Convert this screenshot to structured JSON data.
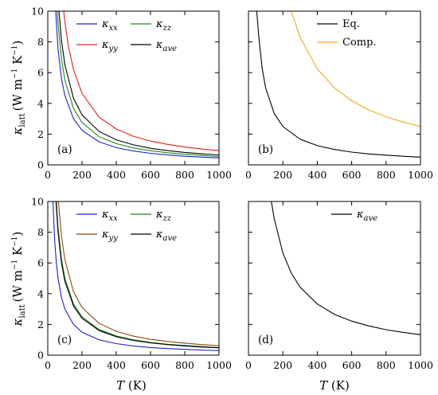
{
  "figure": {
    "ylabel_main": "κ",
    "ylabel_sub": "latt",
    "ylabel_units": "(W m",
    "ylabel_exp1": "−1",
    "ylabel_mid": " K",
    "ylabel_exp2": "−1",
    "ylabel_close": ")",
    "xlabel_main": "T",
    "xlabel_units": " (K)"
  },
  "chart_data": [
    {
      "id": "a",
      "type": "line",
      "panel_label": "(a)",
      "xlim": [
        0,
        1000
      ],
      "ylim": [
        0,
        10
      ],
      "xticks": [
        0,
        200,
        400,
        600,
        800,
        1000
      ],
      "yticks": [
        0,
        2,
        4,
        6,
        8,
        10
      ],
      "show_xticklabels": true,
      "show_yticklabels": true,
      "legend_position": "top-right, two columns",
      "series": [
        {
          "name": "κ",
          "sub": "xx",
          "color": "#2020d0",
          "x": [
            46,
            60,
            80,
            100,
            150,
            200,
            300,
            400,
            500,
            600,
            700,
            800,
            900,
            1000
          ],
          "y": [
            10,
            7.5,
            5.6,
            4.5,
            3.0,
            2.25,
            1.5,
            1.12,
            0.9,
            0.75,
            0.64,
            0.56,
            0.5,
            0.45
          ]
        },
        {
          "name": "κ",
          "sub": "yy",
          "color": "#e02020",
          "x": [
            93,
            100,
            120,
            150,
            200,
            300,
            400,
            500,
            600,
            700,
            800,
            900,
            1000
          ],
          "y": [
            10,
            9.3,
            7.75,
            6.2,
            4.65,
            3.1,
            2.33,
            1.86,
            1.55,
            1.33,
            1.16,
            1.03,
            0.93
          ]
        },
        {
          "name": "κ",
          "sub": "zz",
          "color": "#1a8a1a",
          "x": [
            55,
            60,
            80,
            100,
            150,
            200,
            300,
            400,
            500,
            600,
            700,
            800,
            900,
            1000
          ],
          "y": [
            10,
            9.2,
            6.9,
            5.5,
            3.67,
            2.75,
            1.83,
            1.38,
            1.1,
            0.92,
            0.79,
            0.69,
            0.61,
            0.55
          ]
        },
        {
          "name": "κ",
          "sub": "ave",
          "color": "#000000",
          "x": [
            65,
            80,
            100,
            150,
            200,
            300,
            400,
            500,
            600,
            700,
            800,
            900,
            1000
          ],
          "y": [
            10,
            8.1,
            6.5,
            4.33,
            3.25,
            2.17,
            1.63,
            1.3,
            1.08,
            0.93,
            0.81,
            0.72,
            0.65
          ]
        }
      ]
    },
    {
      "id": "b",
      "type": "line",
      "panel_label": "(b)",
      "xlim": [
        0,
        1000
      ],
      "ylim": [
        0,
        10
      ],
      "xticks": [
        0,
        200,
        400,
        600,
        800,
        1000
      ],
      "yticks": [
        0,
        2,
        4,
        6,
        8,
        10
      ],
      "show_xticklabels": true,
      "show_yticklabels": false,
      "legend_position": "top-right",
      "series": [
        {
          "name": "Eq.",
          "color": "#000000",
          "x": [
            48,
            60,
            80,
            100,
            150,
            200,
            300,
            400,
            500,
            600,
            700,
            800,
            900,
            1000
          ],
          "y": [
            10,
            8.3,
            6.25,
            5.0,
            3.33,
            2.5,
            1.67,
            1.25,
            1.0,
            0.83,
            0.71,
            0.63,
            0.56,
            0.5
          ]
        },
        {
          "name": "Comp.",
          "color": "#f5a623",
          "x": [
            248,
            300,
            400,
            500,
            600,
            700,
            800,
            900,
            1000
          ],
          "y": [
            10,
            8.3,
            6.25,
            5.0,
            4.17,
            3.57,
            3.13,
            2.78,
            2.5
          ]
        }
      ]
    },
    {
      "id": "c",
      "type": "line",
      "panel_label": "(c)",
      "xlim": [
        0,
        1000
      ],
      "ylim": [
        0,
        10
      ],
      "xticks": [
        0,
        200,
        400,
        600,
        800,
        1000
      ],
      "yticks": [
        0,
        2,
        4,
        6,
        8,
        10
      ],
      "show_xticklabels": true,
      "show_yticklabels": true,
      "legend_position": "top-right, two columns",
      "series": [
        {
          "name": "κ",
          "sub": "xx",
          "color": "#2020d0",
          "x": [
            30,
            40,
            50,
            60,
            80,
            100,
            150,
            200,
            300,
            400,
            500,
            600,
            700,
            800,
            900,
            1000
          ],
          "y": [
            10,
            7.5,
            6.0,
            5.0,
            3.75,
            3.0,
            2.0,
            1.5,
            1.0,
            0.75,
            0.6,
            0.5,
            0.43,
            0.38,
            0.33,
            0.3
          ]
        },
        {
          "name": "κ",
          "sub": "yy",
          "color": "#8b4513",
          "x": [
            62,
            80,
            100,
            150,
            200,
            300,
            400,
            500,
            600,
            700,
            800,
            900,
            1000
          ],
          "y": [
            10,
            7.75,
            6.2,
            4.13,
            3.1,
            2.07,
            1.55,
            1.24,
            1.03,
            0.89,
            0.78,
            0.69,
            0.62
          ]
        },
        {
          "name": "κ",
          "sub": "zz",
          "color": "#1a8a1a",
          "x": [
            50,
            60,
            80,
            100,
            150,
            200,
            300,
            400,
            500,
            600,
            700,
            800,
            900,
            1000
          ],
          "y": [
            10,
            8.3,
            6.25,
            5.0,
            3.33,
            2.5,
            1.67,
            1.25,
            1.0,
            0.83,
            0.71,
            0.63,
            0.56,
            0.5
          ]
        },
        {
          "name": "κ",
          "sub": "ave",
          "color": "#000000",
          "x": [
            48,
            60,
            80,
            100,
            150,
            200,
            300,
            400,
            500,
            600,
            700,
            800,
            900,
            1000
          ],
          "y": [
            10,
            8.0,
            6.0,
            4.8,
            3.2,
            2.4,
            1.6,
            1.2,
            0.96,
            0.8,
            0.69,
            0.6,
            0.53,
            0.48
          ]
        }
      ]
    },
    {
      "id": "d",
      "type": "line",
      "panel_label": "(d)",
      "xlim": [
        0,
        1000
      ],
      "ylim": [
        0,
        10
      ],
      "xticks": [
        0,
        200,
        400,
        600,
        800,
        1000
      ],
      "yticks": [
        0,
        2,
        4,
        6,
        8,
        10
      ],
      "show_xticklabels": true,
      "show_yticklabels": false,
      "legend_position": "top-right",
      "series": [
        {
          "name": "κ",
          "sub": "ave",
          "color": "#000000",
          "x": [
            133,
            150,
            200,
            250,
            300,
            400,
            500,
            600,
            700,
            800,
            900,
            1000
          ],
          "y": [
            10,
            8.87,
            6.65,
            5.32,
            4.43,
            3.33,
            2.66,
            2.22,
            1.9,
            1.66,
            1.48,
            1.33
          ]
        }
      ]
    }
  ]
}
